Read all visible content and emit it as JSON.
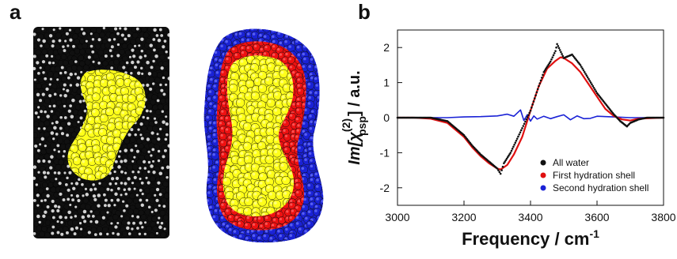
{
  "figure": {
    "panel_a_label": "a",
    "panel_b_label": "b"
  },
  "panel_a": {
    "colors": {
      "water": "#101010",
      "water_highlight": "#f4f4f4",
      "protein": "#ffff1a",
      "first_shell": "#ee1111",
      "second_shell": "#1a22d6"
    }
  },
  "chart_data": {
    "type": "line",
    "xlabel_text": "Frequency / cm",
    "xlabel_sup": "-1",
    "ylabel_parts": {
      "prefix": "Im[χ",
      "sup": "(2)",
      "sub": "psp",
      "suffix": "] / a.u."
    },
    "xlim": [
      3000,
      3800
    ],
    "ylim": [
      -2.5,
      2.5
    ],
    "xticks": [
      3000,
      3200,
      3400,
      3600,
      3800
    ],
    "yticks": [
      -2,
      -1,
      0,
      1,
      2
    ],
    "grid": false,
    "legend_position": "bottom-right",
    "series": [
      {
        "name": "All water",
        "color": "#111111",
        "style": "dots",
        "x": [
          3000,
          3050,
          3100,
          3150,
          3200,
          3225,
          3250,
          3275,
          3300,
          3310,
          3320,
          3340,
          3360,
          3375,
          3400,
          3425,
          3440,
          3460,
          3475,
          3480,
          3500,
          3525,
          3550,
          3575,
          3600,
          3625,
          3650,
          3670,
          3690,
          3700,
          3725,
          3750,
          3800
        ],
        "y": [
          0,
          0,
          0,
          -0.1,
          -0.5,
          -0.8,
          -1.05,
          -1.25,
          -1.45,
          -1.6,
          -1.3,
          -1.0,
          -0.6,
          -0.3,
          0.2,
          0.9,
          1.3,
          1.6,
          1.9,
          2.1,
          1.7,
          1.8,
          1.5,
          1.1,
          0.7,
          0.4,
          0.1,
          -0.1,
          -0.25,
          -0.15,
          -0.05,
          0,
          0
        ]
      },
      {
        "name": "First hydration shell",
        "color": "#e01010",
        "style": "line",
        "x": [
          3000,
          3050,
          3100,
          3150,
          3200,
          3225,
          3250,
          3275,
          3300,
          3310,
          3330,
          3350,
          3375,
          3400,
          3425,
          3450,
          3475,
          3490,
          3500,
          3525,
          3550,
          3575,
          3600,
          3625,
          3650,
          3675,
          3700,
          3725,
          3800
        ],
        "y": [
          0,
          0,
          -0.03,
          -0.15,
          -0.55,
          -0.85,
          -1.1,
          -1.3,
          -1.45,
          -1.48,
          -1.35,
          -1.05,
          -0.55,
          0.2,
          0.9,
          1.4,
          1.62,
          1.72,
          1.7,
          1.55,
          1.3,
          0.95,
          0.6,
          0.25,
          0.05,
          -0.05,
          -0.08,
          -0.03,
          0
        ]
      },
      {
        "name": "Second hydration shell",
        "color": "#1a22d6",
        "style": "line",
        "x": [
          3000,
          3050,
          3100,
          3150,
          3200,
          3250,
          3300,
          3330,
          3350,
          3370,
          3380,
          3390,
          3400,
          3410,
          3420,
          3440,
          3460,
          3480,
          3500,
          3520,
          3540,
          3560,
          3580,
          3600,
          3650,
          3700,
          3800
        ],
        "y": [
          0,
          0,
          0,
          0,
          0.02,
          0.03,
          0.05,
          0.1,
          0.04,
          0.22,
          -0.08,
          0.08,
          -0.1,
          0.05,
          -0.04,
          0.04,
          -0.03,
          0.03,
          0.08,
          -0.06,
          0.05,
          -0.03,
          -0.02,
          0.04,
          0.02,
          0,
          0
        ]
      }
    ]
  }
}
